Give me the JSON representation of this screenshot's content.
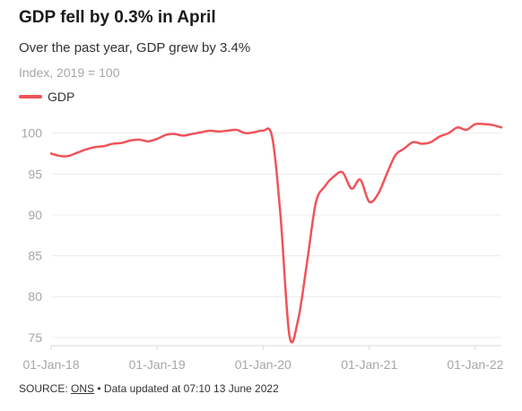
{
  "title": "GDP fell by 0.3% in April",
  "subtitle": "Over the past year, GDP grew by 3.4%",
  "unit_label": "Index, 2019 = 100",
  "legend": {
    "label": "GDP",
    "color": "#f0535a"
  },
  "source": {
    "prefix": "SOURCE:",
    "link": "ONS",
    "suffix": "• Data updated at 07:10 13 June 2022"
  },
  "chart_data": {
    "type": "line",
    "title": "GDP fell by 0.3% in April",
    "xlabel": "",
    "ylabel": "",
    "ylim": [
      74,
      101.5
    ],
    "xlim": [
      "2018-01-01",
      "2022-04-01"
    ],
    "y_ticks": [
      75,
      80,
      85,
      90,
      95,
      100
    ],
    "x_ticks": [
      {
        "date": "2018-01-01",
        "label": "01-Jan-18"
      },
      {
        "date": "2019-01-01",
        "label": "01-Jan-19"
      },
      {
        "date": "2020-01-01",
        "label": "01-Jan-20"
      },
      {
        "date": "2021-01-01",
        "label": "01-Jan-21"
      },
      {
        "date": "2022-01-01",
        "label": "01-Jan-22"
      }
    ],
    "grid": "horizontal",
    "legend_position": "top-left",
    "series": [
      {
        "name": "GDP",
        "color": "#f0535a",
        "points": [
          [
            "2018-01-01",
            97.5
          ],
          [
            "2018-02-01",
            97.2
          ],
          [
            "2018-03-01",
            97.2
          ],
          [
            "2018-04-01",
            97.6
          ],
          [
            "2018-05-01",
            98.0
          ],
          [
            "2018-06-01",
            98.3
          ],
          [
            "2018-07-01",
            98.4
          ],
          [
            "2018-08-01",
            98.7
          ],
          [
            "2018-09-01",
            98.8
          ],
          [
            "2018-10-01",
            99.1
          ],
          [
            "2018-11-01",
            99.2
          ],
          [
            "2018-12-01",
            99.0
          ],
          [
            "2019-01-01",
            99.3
          ],
          [
            "2019-02-01",
            99.8
          ],
          [
            "2019-03-01",
            99.9
          ],
          [
            "2019-04-01",
            99.7
          ],
          [
            "2019-05-01",
            99.9
          ],
          [
            "2019-06-01",
            100.1
          ],
          [
            "2019-07-01",
            100.3
          ],
          [
            "2019-08-01",
            100.2
          ],
          [
            "2019-09-01",
            100.3
          ],
          [
            "2019-10-01",
            100.4
          ],
          [
            "2019-11-01",
            100.0
          ],
          [
            "2019-12-01",
            100.1
          ],
          [
            "2020-01-01",
            100.3
          ],
          [
            "2020-02-01",
            99.6
          ],
          [
            "2020-03-01",
            90.0
          ],
          [
            "2020-04-01",
            75.2
          ],
          [
            "2020-05-01",
            77.2
          ],
          [
            "2020-06-01",
            84.3
          ],
          [
            "2020-07-01",
            91.5
          ],
          [
            "2020-08-01",
            93.5
          ],
          [
            "2020-09-01",
            94.7
          ],
          [
            "2020-10-01",
            95.2
          ],
          [
            "2020-11-01",
            93.2
          ],
          [
            "2020-12-01",
            94.3
          ],
          [
            "2021-01-01",
            91.6
          ],
          [
            "2021-02-01",
            92.6
          ],
          [
            "2021-03-01",
            94.9
          ],
          [
            "2021-04-01",
            97.3
          ],
          [
            "2021-05-01",
            98.1
          ],
          [
            "2021-06-01",
            98.9
          ],
          [
            "2021-07-01",
            98.7
          ],
          [
            "2021-08-01",
            98.9
          ],
          [
            "2021-09-01",
            99.6
          ],
          [
            "2021-10-01",
            100.0
          ],
          [
            "2021-11-01",
            100.7
          ],
          [
            "2021-12-01",
            100.4
          ],
          [
            "2022-01-01",
            101.1
          ],
          [
            "2022-02-01",
            101.1
          ],
          [
            "2022-03-01",
            101.0
          ],
          [
            "2022-04-01",
            100.7
          ]
        ]
      }
    ]
  }
}
